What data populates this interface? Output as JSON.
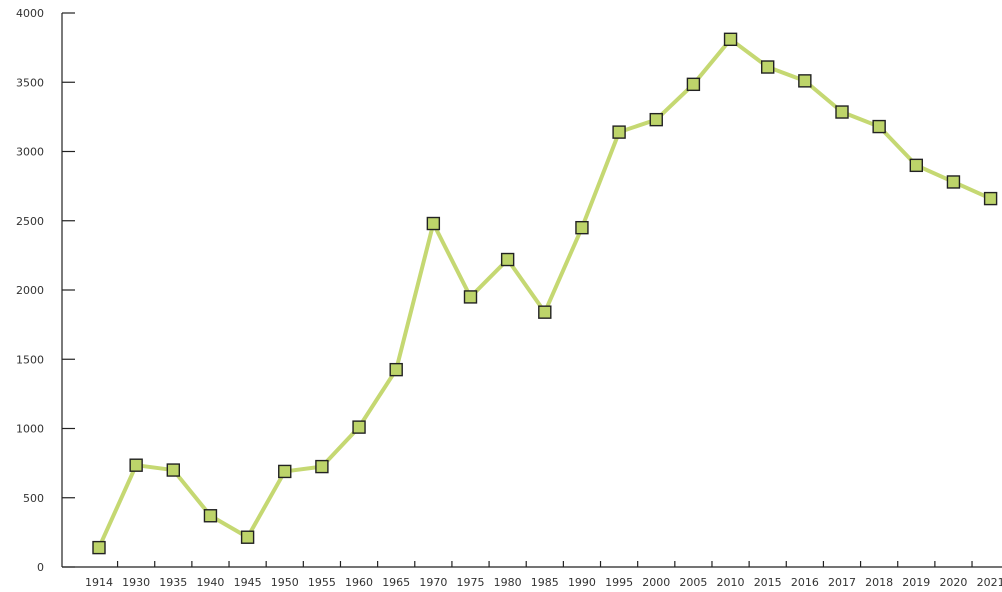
{
  "chart_data": {
    "type": "line",
    "title": "",
    "xlabel": "",
    "ylabel": "",
    "categories": [
      "1914",
      "1930",
      "1935",
      "1940",
      "1945",
      "1950",
      "1955",
      "1960",
      "1965",
      "1970",
      "1975",
      "1980",
      "1985",
      "1990",
      "1995",
      "2000",
      "2005",
      "2010",
      "2015",
      "2016",
      "2017",
      "2018",
      "2019",
      "2020",
      "2021"
    ],
    "series": [
      {
        "values": [
          140,
          735,
          700,
          370,
          215,
          690,
          725,
          1010,
          1425,
          2480,
          1950,
          2220,
          1840,
          2450,
          3140,
          3230,
          3485,
          3810,
          3610,
          3510,
          3285,
          3180,
          2900,
          2780,
          2660
        ]
      }
    ],
    "ylim": [
      0,
      4000
    ],
    "yticks": [
      0,
      500,
      1000,
      1500,
      2000,
      2500,
      3000,
      3500,
      4000
    ],
    "grid": false,
    "legend": "none",
    "colors": {
      "line": "#c5d872",
      "marker_fill": "#bdd46a",
      "marker_stroke": "#222222",
      "axis": "#222222"
    }
  }
}
